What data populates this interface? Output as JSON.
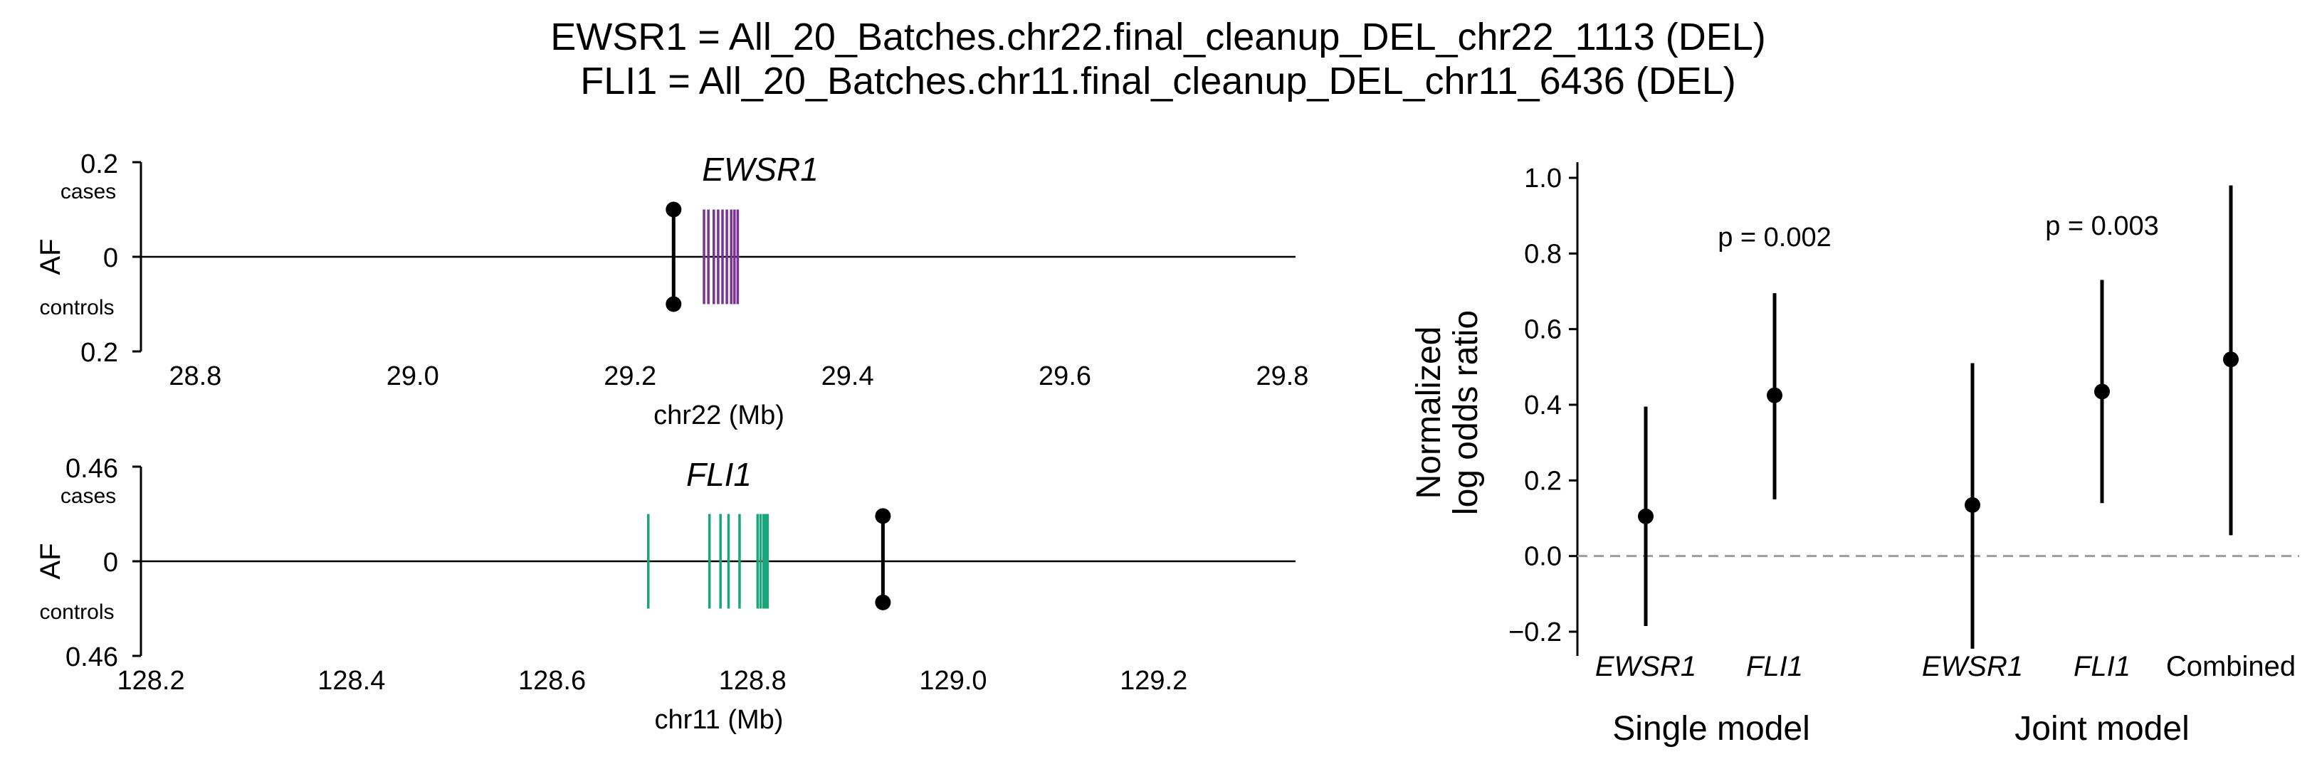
{
  "figure": {
    "title_line1": "EWSR1 = All_20_Batches.chr22.final_cleanup_DEL_chr22_1113 (DEL)",
    "title_line2": "FLI1 = All_20_Batches.chr11.final_cleanup_DEL_chr11_6436 (DEL)"
  },
  "chart_data": [
    {
      "type": "scatter",
      "gene_label": "EWSR1",
      "xlabel": "chr22 (Mb)",
      "ylabel": "AF",
      "xlim": [
        28.75,
        29.82
      ],
      "x_ticks": [
        "28.8",
        "29.0",
        "29.2",
        "29.4",
        "29.6",
        "29.8"
      ],
      "x_tick_values": [
        28.8,
        29.0,
        29.2,
        29.4,
        29.6,
        29.8
      ],
      "y_tick_labels": {
        "top": "0.2",
        "middle": "0",
        "bottom": "0.2"
      },
      "y_tick_values": [
        0.2,
        0,
        -0.2
      ],
      "cases_label": "cases",
      "controls_label": "controls",
      "ylim": [
        -0.2,
        0.2
      ],
      "variant": {
        "x": 29.24,
        "af_cases": 0.1,
        "af_controls": 0.1
      },
      "exons": [
        29.268,
        29.272,
        29.277,
        29.281,
        29.285,
        29.289,
        29.293,
        29.296,
        29.299
      ],
      "exon_half_height": 0.1,
      "exon_color": "#7b3294"
    },
    {
      "type": "scatter",
      "gene_label": "FLI1",
      "xlabel": "chr11 (Mb)",
      "ylabel": "AF",
      "xlim": [
        128.19,
        129.35
      ],
      "x_ticks": [
        "128.2",
        "128.4",
        "128.6",
        "128.8",
        "129.0",
        "129.2"
      ],
      "x_tick_values": [
        128.2,
        128.4,
        128.6,
        128.8,
        129.0,
        129.2
      ],
      "y_tick_labels": {
        "top": "0.46",
        "middle": "0",
        "bottom": "0.46"
      },
      "y_tick_values": [
        0.46,
        0,
        -0.46
      ],
      "cases_label": "cases",
      "controls_label": "controls",
      "ylim": [
        -0.46,
        0.46
      ],
      "variant": {
        "x": 128.93,
        "af_cases": 0.22,
        "af_controls": 0.2
      },
      "exons": [
        128.696,
        128.757,
        128.768,
        128.776,
        128.787,
        128.805,
        128.808,
        128.811,
        128.813,
        128.815
      ],
      "exon_half_height": 0.23,
      "exon_color": "#1aa57a"
    },
    {
      "type": "scatter",
      "ylabel_line1": "Normalized",
      "ylabel_line2": "log odds ratio",
      "ylim": [
        -0.3,
        1.05
      ],
      "y_ticks": [
        "−0.2",
        "0.0",
        "0.2",
        "0.4",
        "0.6",
        "0.8",
        "1.0"
      ],
      "y_tick_values": [
        -0.2,
        0.0,
        0.2,
        0.4,
        0.6,
        0.8,
        1.0
      ],
      "reference_line": 0.0,
      "categories": [
        "EWSR1",
        "FLI1",
        "EWSR1",
        "FLI1",
        "Combined"
      ],
      "groups": [
        {
          "label": "Single model",
          "p_value_label": "p = 0.002"
        },
        {
          "label": "Joint model",
          "p_value_label": "p = 0.003"
        }
      ],
      "points": [
        {
          "category": "EWSR1",
          "group": "Single model",
          "estimate": 0.105,
          "ci_low": -0.185,
          "ci_high": 0.395
        },
        {
          "category": "FLI1",
          "group": "Single model",
          "estimate": 0.425,
          "ci_low": 0.15,
          "ci_high": 0.695
        },
        {
          "category": "EWSR1",
          "group": "Joint model",
          "estimate": 0.135,
          "ci_low": -0.245,
          "ci_high": 0.51
        },
        {
          "category": "FLI1",
          "group": "Joint model",
          "estimate": 0.435,
          "ci_low": 0.14,
          "ci_high": 0.73
        },
        {
          "category": "Combined",
          "group": "Joint model",
          "estimate": 0.52,
          "ci_low": 0.055,
          "ci_high": 0.98
        }
      ]
    }
  ]
}
